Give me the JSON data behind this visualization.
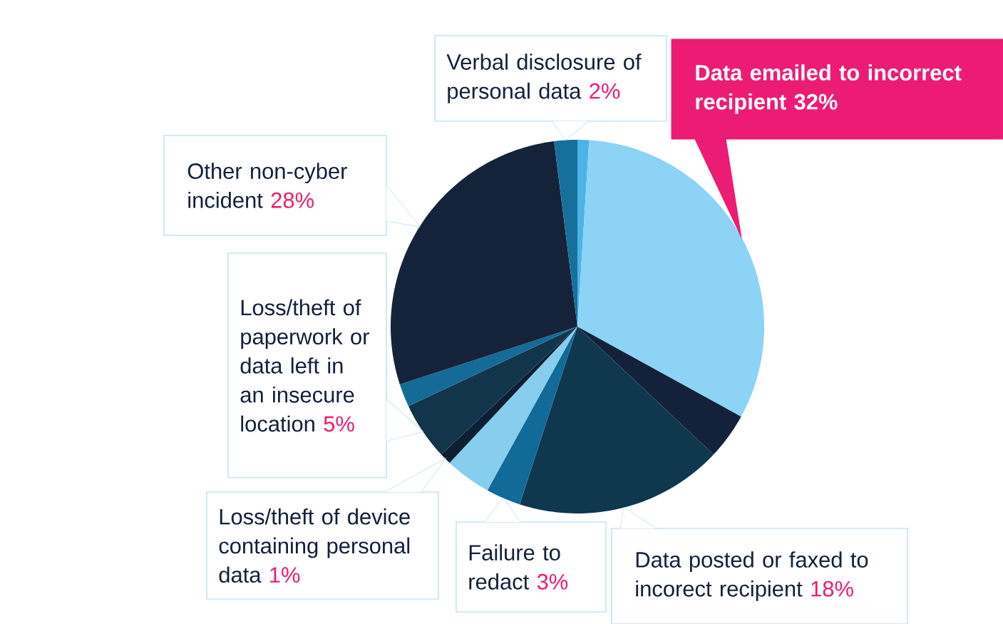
{
  "chart_data": {
    "type": "pie",
    "categories": [
      null,
      "Data emailed to incorrect recipient",
      null,
      "Data posted or faxed to incorect recipient",
      "Failure to redact",
      null,
      "Loss/theft of device containing personal data",
      "Loss/theft of paperwork or data left in an insecure location",
      null,
      "Other non-cyber incident",
      "Verbal disclosure of personal data"
    ],
    "values": [
      1,
      32,
      4,
      18,
      3,
      4,
      1,
      5,
      2,
      28,
      2
    ],
    "value_labels": [
      null,
      "32%",
      null,
      "18%",
      "3%",
      null,
      "1%",
      "5%",
      null,
      "28%",
      "2%"
    ],
    "colors": [
      "#4db3e6",
      "#8cd3f5",
      "#14213a",
      "#0f374d",
      "#116a97",
      "#86cdee",
      "#0e1f33",
      "#12354b",
      "#156a98",
      "#15233a",
      "#17709c"
    ]
  }
}
